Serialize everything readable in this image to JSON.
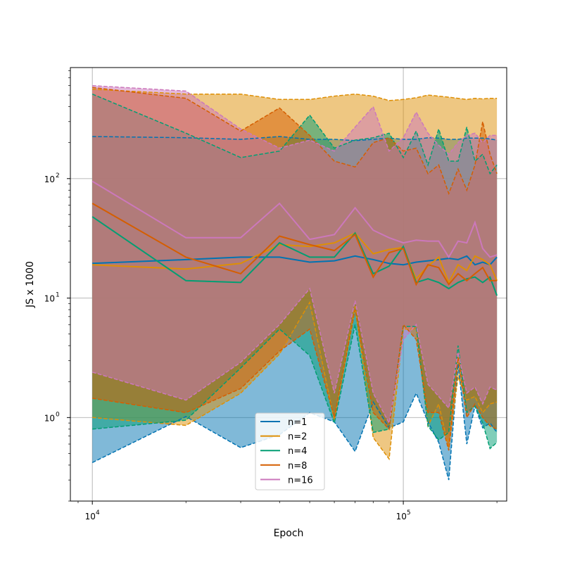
{
  "chart_data": {
    "type": "line",
    "xlabel": "Epoch",
    "ylabel": "JS x 1000",
    "x_scale": "log",
    "y_scale": "log",
    "xlim": [
      8500,
      215000
    ],
    "ylim": [
      0.2,
      850
    ],
    "grid": true,
    "legend_position": "bottom-center",
    "x_ticks": [
      {
        "value": 10000,
        "base": "10",
        "exp": "4"
      },
      {
        "value": 100000,
        "base": "10",
        "exp": "5"
      }
    ],
    "y_ticks": [
      {
        "value": 1,
        "label": "10",
        "exp": "0"
      },
      {
        "value": 10,
        "label": "10",
        "exp": "1"
      },
      {
        "value": 100,
        "label": "10",
        "exp": "2"
      }
    ],
    "x": [
      10000,
      20000,
      30000,
      40000,
      50000,
      60000,
      70000,
      80000,
      90000,
      100000,
      110000,
      120000,
      130000,
      140000,
      150000,
      160000,
      170000,
      180000,
      190000,
      200000
    ],
    "series": [
      {
        "name": "n=1",
        "color": "#0173b2",
        "mean": [
          19.5,
          21,
          22,
          22,
          20,
          20.5,
          22.5,
          21,
          19.5,
          19,
          20,
          20.5,
          21,
          21.5,
          21,
          22.5,
          19,
          20,
          19,
          22
        ],
        "upper": [
          225,
          220,
          213,
          225,
          213,
          213,
          208,
          213,
          218,
          213,
          213,
          220,
          218,
          213,
          213,
          218,
          218,
          218,
          215,
          210
        ],
        "lower": [
          0.42,
          1.02,
          0.56,
          0.72,
          1.1,
          0.92,
          0.52,
          1.35,
          0.82,
          0.92,
          1.6,
          0.92,
          0.62,
          0.3,
          2.8,
          0.6,
          1.25,
          0.82,
          0.9,
          0.75
        ]
      },
      {
        "name": "n=2",
        "color": "#de8f05",
        "mean": [
          19,
          17.5,
          19.5,
          28,
          27,
          29,
          35,
          23.5,
          25.5,
          26.5,
          14.5,
          18.5,
          22,
          13.5,
          19,
          17,
          22.5,
          21,
          19,
          14
        ],
        "upper": [
          560,
          510,
          510,
          460,
          460,
          490,
          510,
          490,
          450,
          460,
          475,
          500,
          490,
          480,
          470,
          460,
          470,
          465,
          470,
          470
        ],
        "lower": [
          1.0,
          0.86,
          1.6,
          3.4,
          9.2,
          0.95,
          8.5,
          0.68,
          0.45,
          5.5,
          5.5,
          0.85,
          1.3,
          0.55,
          2.2,
          1.4,
          1.5,
          1.1,
          1.3,
          1.35
        ]
      },
      {
        "name": "n=4",
        "color": "#029e73",
        "mean": [
          48,
          14,
          13.5,
          29,
          22,
          22,
          35,
          16,
          18.5,
          27,
          13.5,
          14.5,
          13.5,
          12,
          13.5,
          14.5,
          15,
          13.5,
          15,
          10.5
        ],
        "upper": [
          510,
          240,
          150,
          170,
          340,
          180,
          210,
          220,
          240,
          150,
          250,
          130,
          260,
          140,
          140,
          270,
          140,
          160,
          110,
          130
        ],
        "lower": [
          0.8,
          0.95,
          2.6,
          5.5,
          3.3,
          0.9,
          6,
          0.75,
          0.8,
          5.8,
          5.8,
          0.85,
          0.65,
          0.75,
          4,
          1.1,
          1.25,
          0.9,
          0.55,
          0.62
        ]
      },
      {
        "name": "n=8",
        "color": "#d55e00",
        "mean": [
          62,
          22,
          16,
          33,
          28,
          25,
          34,
          15,
          24,
          26,
          13,
          19,
          18,
          13,
          16,
          14,
          16,
          18,
          14,
          14
        ],
        "upper": [
          580,
          470,
          250,
          390,
          230,
          140,
          125,
          200,
          220,
          170,
          180,
          110,
          130,
          75,
          120,
          80,
          130,
          300,
          160,
          110
        ],
        "lower": [
          1.45,
          1.1,
          1.75,
          3.6,
          5.5,
          1.0,
          8,
          1.1,
          0.8,
          6,
          4.5,
          1.1,
          1.1,
          0.53,
          3.2,
          1.0,
          1.3,
          1.0,
          0.85,
          0.8
        ]
      },
      {
        "name": "n=16",
        "color": "#cc78bc",
        "mean": [
          95,
          32,
          32,
          62,
          31,
          34,
          57,
          37,
          32,
          29,
          30.5,
          30,
          30,
          22,
          30,
          29,
          43,
          26,
          22,
          23
        ],
        "upper": [
          600,
          540,
          260,
          180,
          210,
          170,
          270,
          400,
          170,
          220,
          360,
          240,
          190,
          160,
          200,
          230,
          240,
          200,
          230,
          230
        ],
        "lower": [
          2.4,
          1.4,
          2.9,
          6,
          12,
          1.6,
          9.5,
          1.6,
          0.9,
          4.5,
          6,
          1.9,
          1.5,
          1.2,
          3.5,
          1.6,
          1.8,
          1.3,
          1.8,
          1.7
        ]
      }
    ]
  }
}
